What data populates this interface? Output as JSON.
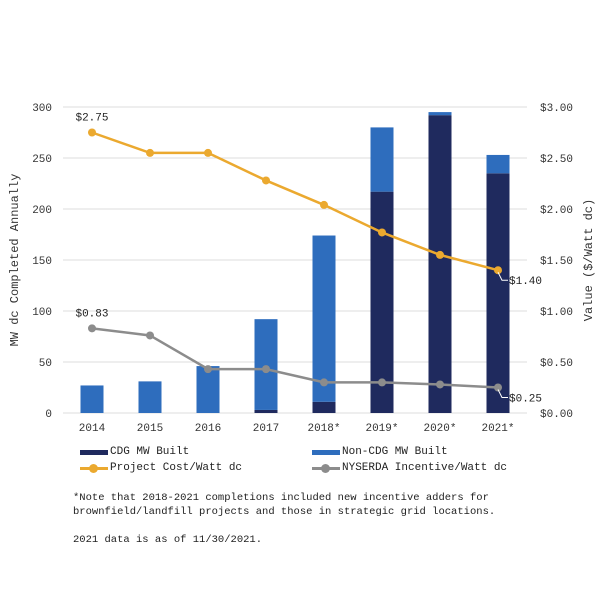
{
  "chart_data": {
    "type": "bar",
    "subtype": "stacked-bar-with-lines-dual-axis",
    "categories": [
      "2014",
      "2015",
      "2016",
      "2017",
      "2018*",
      "2019*",
      "2020*",
      "2021*"
    ],
    "bar_series": [
      {
        "name": "CDG MW Built",
        "color": "#1f2a5e",
        "values": [
          0,
          0,
          0,
          3,
          11,
          217,
          292,
          235
        ]
      },
      {
        "name": "Non-CDG MW Built",
        "color": "#2e6dbd",
        "values": [
          27,
          31,
          46,
          89,
          163,
          63,
          3,
          18
        ]
      }
    ],
    "line_series": [
      {
        "name": "Project Cost/Watt dc",
        "color": "#eba92f",
        "values": [
          2.75,
          2.55,
          2.55,
          2.28,
          2.04,
          1.77,
          1.55,
          1.4
        ],
        "labels": [
          {
            "index": 0,
            "text": "$2.75"
          },
          {
            "index": 7,
            "text": "$1.40"
          }
        ]
      },
      {
        "name": "NYSERDA Incentive/Watt dc",
        "color": "#8c8c8c",
        "values": [
          0.83,
          0.76,
          0.43,
          0.43,
          0.3,
          0.3,
          0.28,
          0.25
        ],
        "labels": [
          {
            "index": 0,
            "text": "$0.83"
          },
          {
            "index": 7,
            "text": "$0.25"
          }
        ]
      }
    ],
    "ylabel": "MW dc Completed Annually",
    "y2label": "Value ($/Watt dc)",
    "xlabel": "",
    "title": "",
    "ylim": [
      0,
      300
    ],
    "y2lim": [
      0,
      3.0
    ],
    "yticks": [
      "0",
      "50",
      "100",
      "150",
      "200",
      "250",
      "300"
    ],
    "y2ticks": [
      "$0.00",
      "$0.50",
      "$1.00",
      "$1.50",
      "$2.00",
      "$2.50",
      "$3.00"
    ],
    "grid": true,
    "legend_position": "bottom"
  },
  "legend": {
    "items": [
      {
        "label": "CDG MW Built",
        "kind": "bar",
        "color": "#1f2a5e"
      },
      {
        "label": "Non-CDG MW Built",
        "kind": "bar",
        "color": "#2e6dbd"
      },
      {
        "label": "Project Cost/Watt dc",
        "kind": "line",
        "color": "#eba92f"
      },
      {
        "label": "NYSERDA Incentive/Watt dc",
        "kind": "line",
        "color": "#8c8c8c"
      }
    ]
  },
  "notes": {
    "note1": "*Note that 2018-2021 completions included new incentive adders for brownfield/landfill projects and those in strategic grid locations.",
    "note2": "2021 data is as of 11/30/2021."
  }
}
